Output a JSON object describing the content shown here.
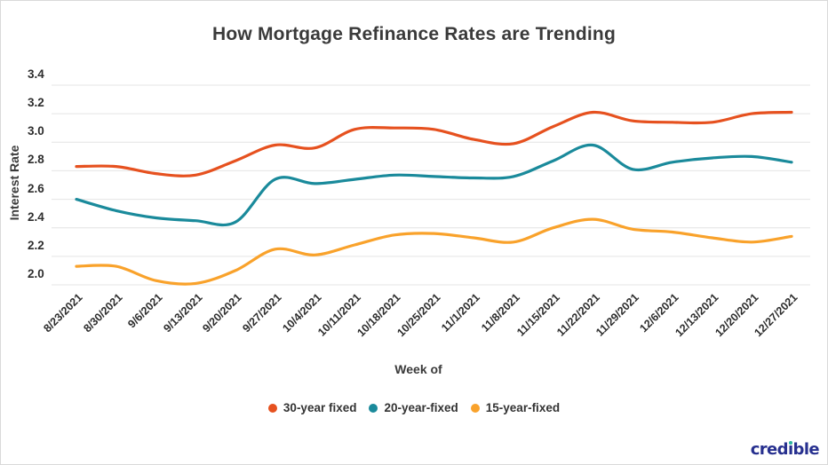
{
  "title": "How Mortgage Refinance Rates are Trending",
  "y_axis": {
    "label": "Interest Rate"
  },
  "x_axis": {
    "label": "Week of"
  },
  "legend": [
    {
      "label": "30-year fixed",
      "color": "#e6511f"
    },
    {
      "label": "20-year-fixed",
      "color": "#1a8a9b"
    },
    {
      "label": "15-year-fixed",
      "color": "#f9a22b"
    }
  ],
  "logo": {
    "part1": "cred",
    "i_char": "ı",
    "part2": "ble"
  },
  "colors": {
    "grid": "#e4e4e4",
    "tick_text": "#2d2d2d",
    "series_30yr": "#e6511f",
    "series_20yr": "#1a8a9b",
    "series_15yr": "#f9a22b",
    "logo_navy": "#27308f",
    "logo_dot_teal": "#2eb5a0"
  },
  "chart_data": {
    "type": "line",
    "title": "How Mortgage Refinance Rates are Trending",
    "xlabel": "Week of",
    "ylabel": "Interest Rate",
    "ylim": [
      2.0,
      3.4
    ],
    "yticks": [
      "3.4",
      "3.2",
      "3.0",
      "2.8",
      "2.6",
      "2.4",
      "2.2",
      "2.0"
    ],
    "grid": "horizontal-only",
    "legend_position": "bottom-center",
    "x": [
      "8/23/2021",
      "8/30/2021",
      "9/6/2021",
      "9/13/2021",
      "9/20/2021",
      "9/27/2021",
      "10/4/2021",
      "10/11/2021",
      "10/18/2021",
      "10/25/2021",
      "11/1/2021",
      "11/8/2021",
      "11/15/2021",
      "11/22/2021",
      "11/29/2021",
      "12/6/2021",
      "12/13/2021",
      "12/20/2021",
      "12/27/2021"
    ],
    "series": [
      {
        "name": "30-year fixed",
        "color": "#e6511f",
        "values": [
          2.83,
          2.83,
          2.78,
          2.77,
          2.87,
          2.98,
          2.96,
          3.09,
          3.1,
          3.09,
          3.02,
          2.99,
          3.11,
          3.21,
          3.15,
          3.14,
          3.14,
          3.2,
          3.21
        ]
      },
      {
        "name": "20-year-fixed",
        "color": "#1a8a9b",
        "values": [
          2.6,
          2.52,
          2.47,
          2.45,
          2.44,
          2.74,
          2.71,
          2.74,
          2.77,
          2.76,
          2.75,
          2.76,
          2.87,
          2.98,
          2.81,
          2.86,
          2.89,
          2.9,
          2.86
        ]
      },
      {
        "name": "15-year-fixed",
        "color": "#f9a22b",
        "values": [
          2.13,
          2.13,
          2.03,
          2.01,
          2.1,
          2.25,
          2.21,
          2.28,
          2.35,
          2.36,
          2.33,
          2.3,
          2.4,
          2.46,
          2.39,
          2.37,
          2.33,
          2.3,
          2.34
        ]
      }
    ]
  }
}
